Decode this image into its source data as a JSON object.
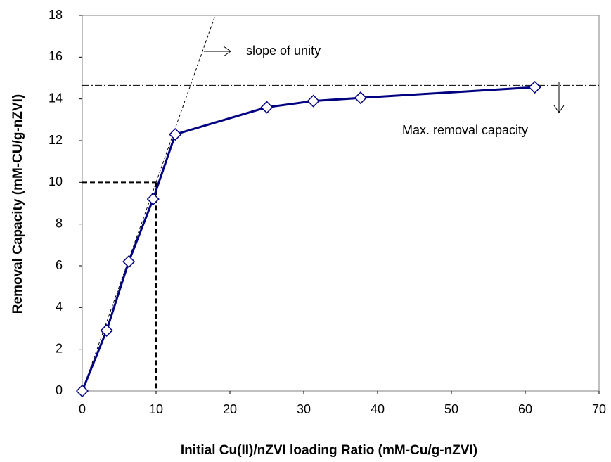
{
  "chart_data": {
    "type": "line",
    "x_label": "Initial Cu(II)/nZVI loading Ratio (mM-Cu/g-nZVI)",
    "y_label": "Removal Capacity (mM-CU/g-nZVI)",
    "x": [
      0,
      3.3,
      6.3,
      9.6,
      12.6,
      25,
      31.3,
      37.7,
      61.3
    ],
    "series": [
      {
        "name": "Removal capacity",
        "color": "#000080",
        "values": [
          0,
          2.9,
          6.2,
          9.2,
          12.3,
          13.6,
          13.9,
          14.05,
          14.56
        ]
      }
    ],
    "xlim": [
      0,
      70
    ],
    "xticks": [
      0,
      10,
      20,
      30,
      40,
      50,
      60,
      70
    ],
    "ylim": [
      0,
      18
    ],
    "yticks": [
      0,
      2,
      4,
      6,
      8,
      10,
      12,
      14,
      16,
      18
    ],
    "max_capacity": 14.65,
    "guide_point": [
      10,
      10
    ],
    "annotations": [
      "slope of unity",
      "Max. removal capacity"
    ]
  }
}
